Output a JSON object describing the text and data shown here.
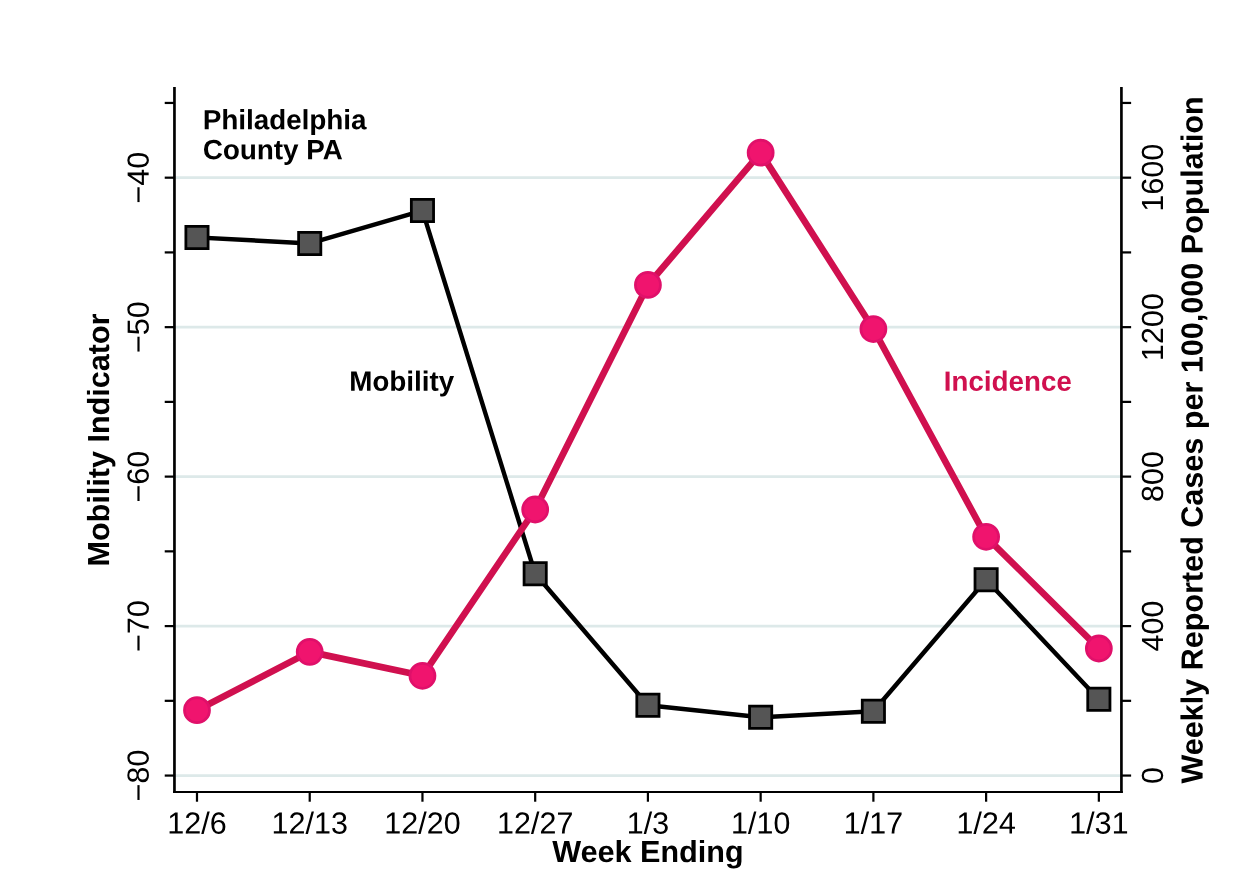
{
  "chart_data": {
    "type": "line",
    "xlabel": "Week Ending",
    "ylabel": "Mobility Indicator",
    "y2label": "Weekly Reported Cases per 100,000 Population",
    "annotations": [
      "Philadelphia\nCounty PA"
    ],
    "categories": [
      "12/6",
      "12/13",
      "12/20",
      "12/27",
      "1/3",
      "1/10",
      "1/17",
      "1/24",
      "1/31"
    ],
    "series": [
      {
        "name": "Mobility",
        "color": "#000000",
        "marker": "square",
        "values": [
          -44.0,
          -44.4,
          -42.2,
          -66.5,
          -75.3,
          -76.1,
          -75.7,
          -66.9,
          -74.9
        ]
      },
      {
        "name": "Incidence",
        "color": "#d0104f",
        "marker": "circle",
        "axis": "y2",
        "values": [
          175,
          331,
          267,
          712,
          1313,
          1667,
          1195,
          639,
          340
        ]
      }
    ],
    "ylim": [
      -81.1,
      -34
    ],
    "yticks": [
      {
        "value": -80,
        "label": "−80"
      },
      {
        "value": -75,
        "label": null
      },
      {
        "value": -70,
        "label": "−70"
      },
      {
        "value": -65,
        "label": null
      },
      {
        "value": -60,
        "label": "−60"
      },
      {
        "value": -55,
        "label": null
      },
      {
        "value": -50,
        "label": "−50"
      },
      {
        "value": -45,
        "label": null
      },
      {
        "value": -40,
        "label": "−40"
      },
      {
        "value": -35,
        "label": null
      }
    ],
    "y2lim": [
      -44,
      1840
    ],
    "y2ticks": [
      0,
      {
        "value": 200,
        "label": null
      },
      400,
      {
        "value": 600,
        "label": null
      },
      800,
      {
        "value": 1000,
        "label": null
      },
      1200,
      {
        "value": 1400,
        "label": null
      },
      1600,
      {
        "value": 1800,
        "label": null
      }
    ],
    "grid": "y",
    "legend": false,
    "line_style": "solid"
  }
}
